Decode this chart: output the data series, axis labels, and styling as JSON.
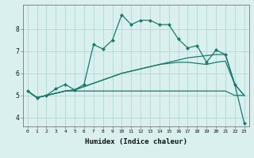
{
  "xlabel": "Humidex (Indice chaleur)",
  "x": [
    0,
    1,
    2,
    3,
    4,
    5,
    6,
    7,
    8,
    9,
    10,
    11,
    12,
    13,
    14,
    15,
    16,
    17,
    18,
    19,
    20,
    21,
    22,
    23
  ],
  "line_main": [
    5.2,
    4.9,
    5.0,
    5.3,
    5.5,
    5.25,
    5.5,
    7.3,
    7.1,
    7.5,
    8.65,
    8.2,
    8.4,
    8.4,
    8.2,
    8.2,
    7.55,
    7.15,
    7.25,
    6.5,
    7.05,
    6.85,
    5.5,
    3.75
  ],
  "line_flat": [
    5.2,
    4.9,
    5.0,
    5.1,
    5.2,
    5.2,
    5.2,
    5.2,
    5.2,
    5.2,
    5.2,
    5.2,
    5.2,
    5.2,
    5.2,
    5.2,
    5.2,
    5.2,
    5.2,
    5.2,
    5.2,
    5.2,
    5.0,
    5.0
  ],
  "line_diag1": [
    5.2,
    4.9,
    5.0,
    5.1,
    5.2,
    5.25,
    5.4,
    5.55,
    5.7,
    5.85,
    6.0,
    6.1,
    6.2,
    6.3,
    6.4,
    6.5,
    6.6,
    6.7,
    6.75,
    6.8,
    6.85,
    6.85,
    5.5,
    5.0
  ],
  "line_diag2": [
    5.2,
    4.9,
    5.0,
    5.1,
    5.2,
    5.25,
    5.4,
    5.55,
    5.7,
    5.85,
    6.0,
    6.1,
    6.2,
    6.3,
    6.4,
    6.45,
    6.5,
    6.5,
    6.45,
    6.4,
    6.5,
    6.55,
    5.5,
    5.0
  ],
  "line_color": "#1a7a6a",
  "bg_color": "#d9f0ee",
  "grid_color": "#b5dbd8",
  "ylim": [
    3.6,
    9.1
  ],
  "yticks": [
    4,
    5,
    6,
    7,
    8
  ],
  "xticks": [
    0,
    1,
    2,
    3,
    4,
    5,
    6,
    7,
    8,
    9,
    10,
    11,
    12,
    13,
    14,
    15,
    16,
    17,
    18,
    19,
    20,
    21,
    22,
    23
  ]
}
